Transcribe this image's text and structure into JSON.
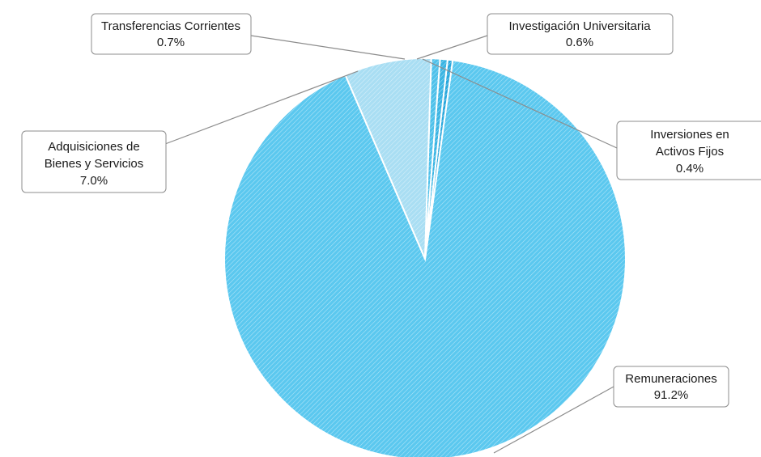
{
  "chart_data": {
    "type": "pie",
    "slices": [
      {
        "label": "Remuneraciones",
        "value_text": "91.2%",
        "value": 91.2,
        "color": "#5bc8ef"
      },
      {
        "label": "Adquisiciones de Bienes y Servicios",
        "value_text": "7.0%",
        "value": 7.0,
        "color": "#a9def3"
      },
      {
        "label": "Transferencias Corrientes",
        "value_text": "0.7%",
        "value": 0.7,
        "color": "#4fc1ea"
      },
      {
        "label": "Investigación Universitaria",
        "value_text": "0.6%",
        "value": 0.6,
        "color": "#3bb5e3"
      },
      {
        "label": "Inversiones en Activos Fijos",
        "value_text": "0.4%",
        "value": 0.4,
        "color": "#2aa8dc"
      }
    ],
    "callouts": [
      {
        "lines": [
          "Transferencias Corrientes",
          "0.7%"
        ]
      },
      {
        "lines": [
          "Investigación Universitaria",
          "0.6%"
        ]
      },
      {
        "lines": [
          "Adquisiciones de",
          "Bienes y Servicios",
          "7.0%"
        ]
      },
      {
        "lines": [
          "Inversiones en",
          "Activos Fijos",
          "0.4%"
        ]
      },
      {
        "lines": [
          "Remuneraciones",
          "91.2%"
        ]
      }
    ],
    "pattern": "diagonal-hatch",
    "legend": "callouts"
  }
}
